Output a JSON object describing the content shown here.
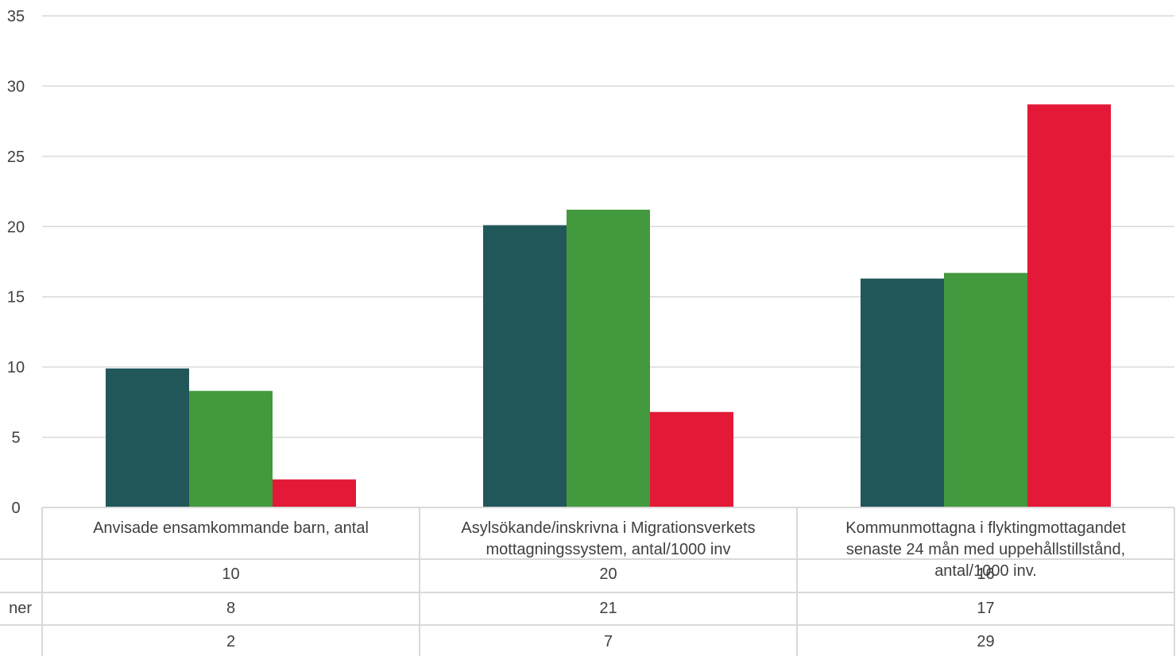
{
  "chart_data": {
    "type": "bar",
    "categories": [
      "Anvisade ensamkommande barn, antal",
      "Asylsökande/inskrivna i Migrationsverkets mottagningssystem, antal/1000 inv",
      "Kommunmottagna i flyktingmottagandet senaste 24 mån med uppehållstillstånd, antal/1000 inv."
    ],
    "series": [
      {
        "values": [
          9.9,
          20.1,
          16.3
        ],
        "table_values": [
          "10",
          "20",
          "16"
        ],
        "row_label": "",
        "color": "#22575a"
      },
      {
        "values": [
          8.3,
          21.2,
          16.7
        ],
        "table_values": [
          "8",
          "21",
          "17"
        ],
        "row_label": "ner",
        "color": "#43993d"
      },
      {
        "values": [
          2.0,
          6.8,
          28.7
        ],
        "table_values": [
          "2",
          "7",
          "29"
        ],
        "row_label": "",
        "color": "#e31937"
      }
    ],
    "yticks": [
      "0",
      "5",
      "10",
      "15",
      "20",
      "25",
      "30",
      "35"
    ],
    "ylim": [
      0,
      35
    ],
    "grid": true,
    "title": "",
    "xlabel": "",
    "ylabel": ""
  }
}
